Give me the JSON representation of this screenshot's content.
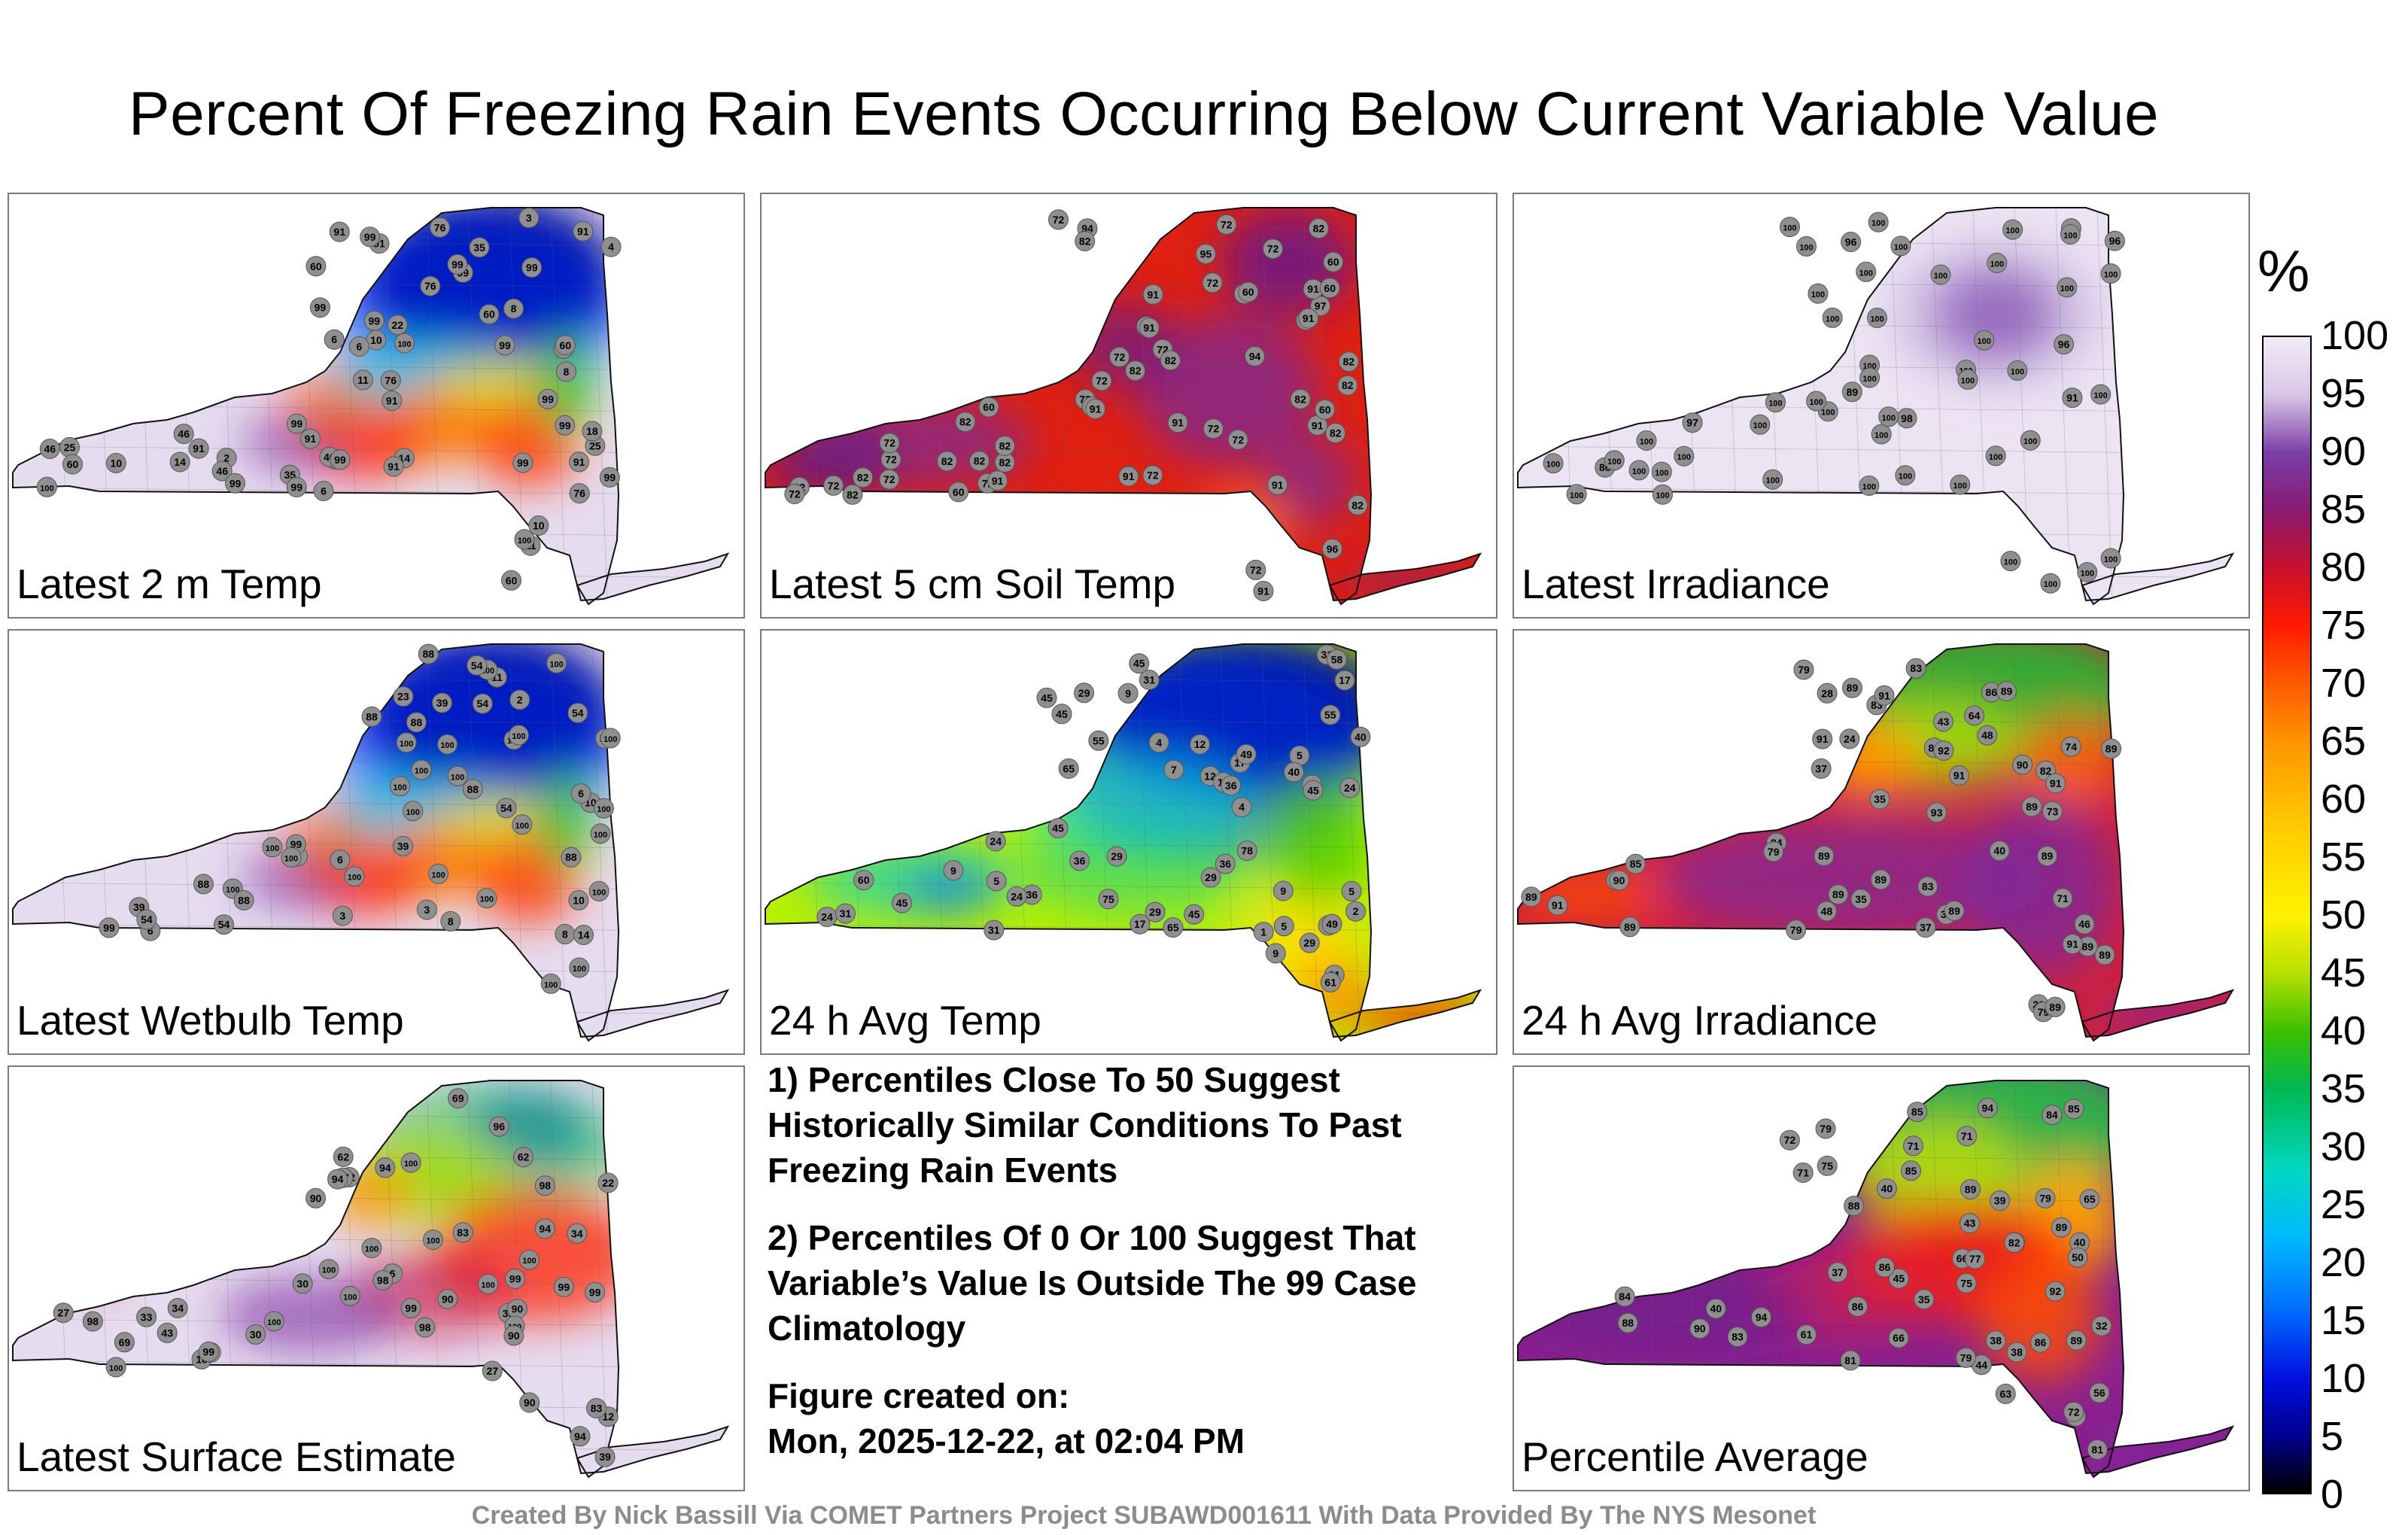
{
  "title": "Percent Of Freezing Rain Events Occurring Below Current Variable Value",
  "panels": [
    {
      "label": "Latest 2 m Temp",
      "theme": "mixed_cold_north",
      "stations": [
        8,
        6,
        8,
        6,
        10,
        3,
        2,
        4,
        10,
        11,
        46,
        22,
        91,
        35,
        10,
        8,
        6,
        11,
        14,
        25,
        14,
        60,
        99,
        100,
        99,
        99,
        99,
        99,
        99,
        91,
        60,
        25,
        60,
        91,
        76,
        46,
        91,
        18,
        76,
        60,
        99,
        91,
        35,
        99,
        46,
        60,
        46,
        91,
        76,
        91,
        99,
        99,
        76,
        91,
        100,
        99,
        99,
        99,
        100,
        99,
        99,
        99
      ]
    },
    {
      "label": "Latest 5 cm Soil Temp",
      "theme": "warm",
      "stations": [
        82,
        72,
        82,
        91,
        72,
        91,
        82,
        72,
        91,
        82,
        97,
        72,
        91,
        91,
        82,
        96,
        72,
        82,
        72,
        91,
        60,
        72,
        82,
        72,
        82,
        72,
        72,
        60,
        82,
        91,
        82,
        72,
        82,
        60,
        82,
        72,
        94,
        82,
        91,
        82,
        72,
        72,
        91,
        91,
        60,
        72,
        82,
        72,
        91,
        60,
        72,
        82,
        60,
        72,
        91,
        96,
        72,
        60,
        95,
        94,
        72,
        82
      ]
    },
    {
      "label": "Latest Irradiance",
      "theme": "high",
      "stations": [
        100,
        100,
        96,
        98,
        91,
        86,
        96,
        89,
        100,
        100,
        100,
        100,
        100,
        96,
        100,
        100,
        100,
        100,
        100,
        100,
        100,
        100,
        100,
        97,
        100,
        100,
        100,
        100,
        100,
        100,
        100,
        100,
        100,
        100,
        100,
        100,
        100,
        100,
        100,
        100,
        100,
        100,
        100,
        100,
        100,
        100,
        100,
        100,
        100,
        100,
        100,
        100,
        100,
        100
      ]
    },
    {
      "label": "Latest Wetbulb Temp",
      "theme": "mixed_cold_north",
      "stations": [
        8,
        6,
        8,
        6,
        10,
        3,
        2,
        3,
        10,
        54,
        23,
        39,
        8,
        6,
        11,
        14,
        54,
        100,
        100,
        100,
        88,
        99,
        54,
        39,
        100,
        88,
        88,
        54,
        99,
        88,
        54,
        54,
        100,
        100,
        100,
        100,
        100,
        88,
        88,
        100,
        100,
        100,
        100,
        100,
        100,
        54,
        39,
        88,
        100,
        100,
        100,
        100,
        100,
        100,
        100,
        100
      ]
    },
    {
      "label": "24 h Avg Temp",
      "theme": "cool",
      "stations": [
        7,
        5,
        4,
        12,
        12,
        9,
        1,
        2,
        29,
        4,
        5,
        17,
        29,
        17,
        9,
        5,
        31,
        17,
        5,
        9,
        24,
        45,
        49,
        45,
        40,
        55,
        36,
        36,
        45,
        24,
        31,
        31,
        36,
        24,
        29,
        40,
        17,
        31,
        9,
        45,
        24,
        29,
        31,
        29,
        36,
        45,
        36,
        45,
        31,
        58,
        61,
        55,
        65,
        75,
        78,
        60,
        65,
        45,
        49
      ]
    },
    {
      "label": "24 h Avg Irradiance",
      "theme": "warm_mixed",
      "stations": [
        37,
        35,
        40,
        46,
        37,
        38,
        46,
        43,
        35,
        48,
        71,
        21,
        24,
        64,
        48,
        79,
        73,
        79,
        86,
        85,
        89,
        82,
        79,
        83,
        74,
        84,
        89,
        89,
        83,
        89,
        89,
        89,
        89,
        89,
        89,
        91,
        89,
        79,
        89,
        89,
        83,
        89,
        90,
        90,
        89,
        89,
        92,
        91,
        91,
        93,
        91,
        28,
        91,
        91
      ]
    },
    {
      "label": "Latest Surface Estimate",
      "theme": "mixed",
      "stations": [
        22,
        27,
        33,
        17,
        30,
        6,
        16,
        12,
        98,
        62,
        34,
        22,
        27,
        34,
        30,
        39,
        94,
        62,
        100,
        98,
        99,
        96,
        90,
        90,
        39,
        43,
        99,
        83,
        69,
        90,
        100,
        94,
        98,
        99,
        69,
        94,
        90,
        100,
        100,
        100,
        100,
        100,
        99,
        83,
        90,
        100,
        94,
        98,
        99,
        98,
        100,
        100
      ]
    },
    {
      "label": "Percentile Average",
      "theme": "avg",
      "stations": [
        38,
        39,
        38,
        40,
        37,
        40,
        44,
        43,
        79,
        61,
        56,
        32,
        35,
        45,
        40,
        50,
        84,
        86,
        85,
        90,
        75,
        71,
        63,
        72,
        81,
        79,
        79,
        89,
        86,
        86,
        82,
        85,
        65,
        66,
        71,
        72,
        89,
        83,
        75,
        84,
        88,
        81,
        71,
        66,
        77,
        61,
        89,
        89,
        85,
        88,
        92,
        94,
        94
      ]
    }
  ],
  "notes": {
    "note1": "1) Percentiles Close To 50 Suggest Historically Similar Conditions To Past Freezing Rain Events",
    "note2": "2) Percentiles Of 0 Or 100 Suggest That Variable’s Value Is Outside The 99 Case Climatology",
    "created_label": "Figure created on:",
    "created_value": "Mon, 2025-12-22, at 02:04 PM"
  },
  "footer": "Created By Nick Bassill Via COMET Partners Project SUBAWD001611 With Data Provided By The NYS Mesonet",
  "colorbar": {
    "unit": "%",
    "ticks": [
      "100",
      "95",
      "90",
      "85",
      "80",
      "75",
      "70",
      "65",
      "60",
      "55",
      "50",
      "45",
      "40",
      "35",
      "30",
      "25",
      "20",
      "15",
      "10",
      "5",
      "0"
    ]
  },
  "colors": {
    "station_fill": "#8f8f8f",
    "border": "#7a7a7a",
    "footer": "#8c8c8c"
  }
}
